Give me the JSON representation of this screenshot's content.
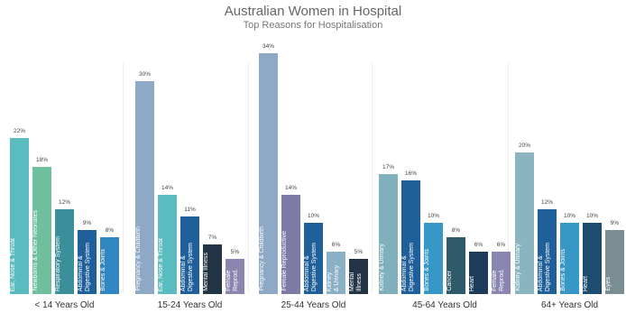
{
  "chart_data": {
    "type": "bar",
    "title": "Australian Women in Hospital",
    "subtitle": "Top Reasons for Hospitalisation",
    "groups": [
      {
        "name": "< 14 Years Old",
        "categories": [
          "Ear, Nose & Throat",
          "Newborns & Other Neonates",
          "Respiratory System",
          "Abdominal &\nDigestive System",
          "Bones & Joints"
        ],
        "values": [
          22,
          18,
          12,
          9,
          8
        ],
        "value_labels": [
          "22%",
          "18%",
          "12%",
          "9%",
          "8%"
        ],
        "colors": [
          "#5bbcc0",
          "#6fbf9f",
          "#3b8f9a",
          "#1f5f9a",
          "#2f86c0"
        ]
      },
      {
        "name": "15-24 Years Old",
        "categories": [
          "Pregnancy & Childbirth",
          "Ear, Nose & Throat",
          "Abdominal &\nDigestive System",
          "Mental Illness",
          "Female\nReprod."
        ],
        "values": [
          30,
          14,
          11,
          7,
          5
        ],
        "value_labels": [
          "30%",
          "14%",
          "11%",
          "7%",
          "5%"
        ],
        "colors": [
          "#8ea9c6",
          "#5bbcc0",
          "#1f5f9a",
          "#243447",
          "#8a86b0"
        ]
      },
      {
        "name": "25-44 Years Old",
        "categories": [
          "Pregnancy & Childbirth",
          "Female Reproductive",
          "Abdominal &\nDigestive System",
          "Kidney\n& Urinary",
          "Mental\nIllness"
        ],
        "values": [
          34,
          14,
          10,
          6,
          5
        ],
        "value_labels": [
          "34%",
          "14%",
          "10%",
          "6%",
          "5%"
        ],
        "colors": [
          "#8ea9c6",
          "#7e7aa6",
          "#1f5f9a",
          "#8ab0c6",
          "#243447"
        ]
      },
      {
        "name": "45-64 Years Old",
        "categories": [
          "Kidney & Urinary",
          "Abdominal &\nDigestive System",
          "Bones & Joints",
          "Cancer",
          "Heart",
          "Female\nReprod."
        ],
        "values": [
          17,
          16,
          10,
          8,
          6,
          6
        ],
        "value_labels": [
          "17%",
          "16%",
          "10%",
          "8%",
          "6%",
          "6%"
        ],
        "colors": [
          "#7fb0bc",
          "#1f5f9a",
          "#3798c8",
          "#2f5a6a",
          "#1d3c5a",
          "#8a86b0"
        ]
      },
      {
        "name": "64+ Years Old",
        "categories": [
          "Kidney & Urinary",
          "Abdominal &\nDigestive System",
          "Bones & Joints",
          "Heart",
          "Eyes"
        ],
        "values": [
          20,
          12,
          10,
          10,
          9
        ],
        "value_labels": [
          "20%",
          "12%",
          "10%",
          "10%",
          "9%"
        ],
        "colors": [
          "#8ab4c0",
          "#1f5f9a",
          "#3798c8",
          "#1d4c6e",
          "#7a8e94"
        ]
      }
    ]
  }
}
